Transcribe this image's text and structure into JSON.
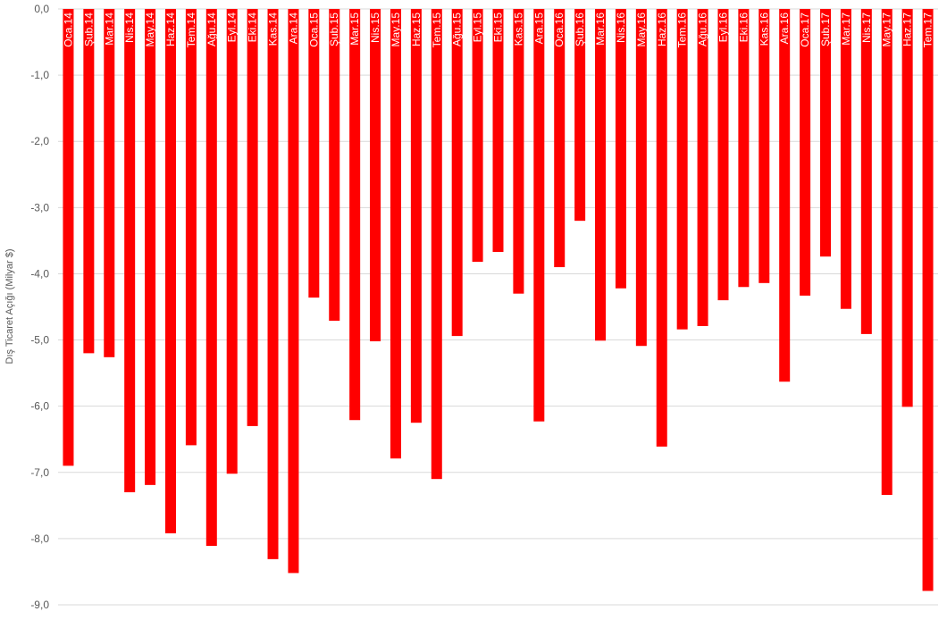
{
  "chart_data": {
    "type": "bar",
    "title": "",
    "xlabel": "",
    "ylabel": "Dış Ticaret Açığı (Milyar $)",
    "ylim": [
      -9,
      0
    ],
    "yticks": [
      "0,0",
      "-1,0",
      "-2,0",
      "-3,0",
      "-4,0",
      "-5,0",
      "-6,0",
      "-7,0",
      "-8,0",
      "-9,0"
    ],
    "grid": true,
    "legend": "none",
    "bar_color": "#FF0000",
    "label_color": "#FFFFFF",
    "categories": [
      "Oca.14",
      "Şub.14",
      "Mar.14",
      "Nis.14",
      "May.14",
      "Haz.14",
      "Tem.14",
      "Ağu.14",
      "Eyl.14",
      "Eki.14",
      "Kas.14",
      "Ara.14",
      "Oca.15",
      "Şub.15",
      "Mar.15",
      "Nis.15",
      "May.15",
      "Haz.15",
      "Tem.15",
      "Ağu.15",
      "Eyl.15",
      "Eki.15",
      "Kas.15",
      "Ara.15",
      "Oca.16",
      "Şub.16",
      "Mar.16",
      "Nis.16",
      "May.16",
      "Haz.16",
      "Tem.16",
      "Ağu.16",
      "Eyl.16",
      "Eki.16",
      "Kas.16",
      "Ara.16",
      "Oca.17",
      "Şub.17",
      "Mar.17",
      "Nis.17",
      "May.17",
      "Haz.17",
      "Tem.17"
    ],
    "values": [
      -6.9,
      -5.2,
      -5.26,
      -7.3,
      -7.19,
      -7.92,
      -6.59,
      -8.11,
      -7.02,
      -6.3,
      -8.31,
      -8.52,
      -4.36,
      -4.71,
      -6.21,
      -5.02,
      -6.79,
      -6.25,
      -7.1,
      -4.94,
      -3.82,
      -3.67,
      -4.3,
      -6.23,
      -3.9,
      -3.2,
      -5.01,
      -4.22,
      -5.09,
      -6.61,
      -4.84,
      -4.79,
      -4.4,
      -4.2,
      -4.14,
      -5.63,
      -4.33,
      -3.74,
      -4.53,
      -4.91,
      -7.34,
      -6.01,
      -8.79
    ]
  }
}
